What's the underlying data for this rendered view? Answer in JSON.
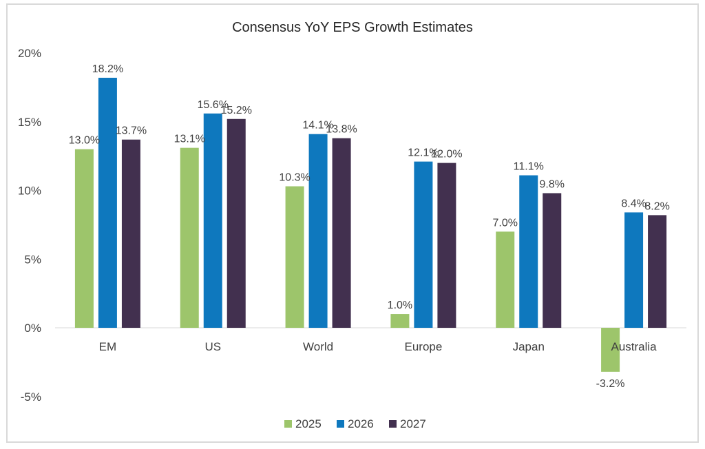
{
  "chart_data": {
    "type": "bar",
    "title": "Consensus YoY EPS Growth Estimates",
    "xlabel": "",
    "ylabel": "",
    "categories": [
      "EM",
      "US",
      "World",
      "Europe",
      "Japan",
      "Australia"
    ],
    "series": [
      {
        "name": "2025",
        "color": "#9dc56b",
        "values": [
          13.0,
          13.1,
          10.3,
          1.0,
          7.0,
          -3.2
        ]
      },
      {
        "name": "2026",
        "color": "#0e78be",
        "values": [
          18.2,
          15.6,
          14.1,
          12.1,
          11.1,
          8.4
        ]
      },
      {
        "name": "2027",
        "color": "#42304f",
        "values": [
          13.7,
          15.2,
          13.8,
          12.0,
          9.8,
          8.2
        ]
      }
    ],
    "ylim": [
      -5,
      20
    ],
    "yticks": [
      -5,
      0,
      5,
      10,
      15,
      20
    ],
    "ytick_labels": [
      "-5%",
      "0%",
      "5%",
      "10%",
      "15%",
      "20%"
    ],
    "value_format": "percent_1dp",
    "grid": false,
    "legend_position": "bottom"
  }
}
